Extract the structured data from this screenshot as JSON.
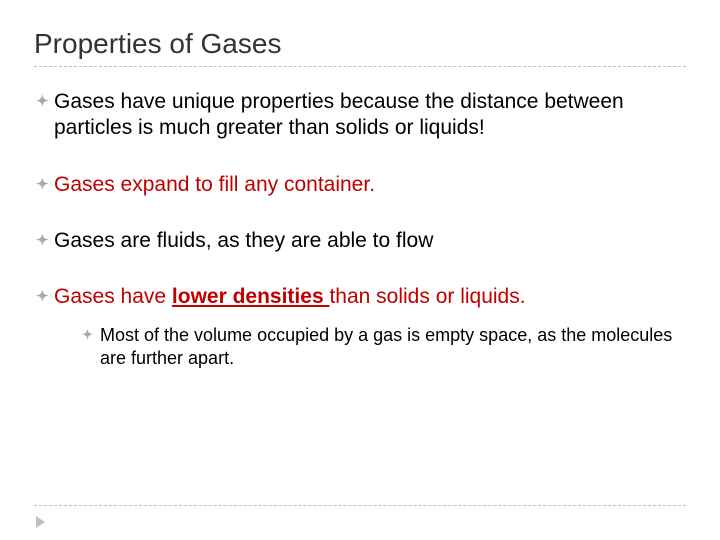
{
  "title": "Properties of Gases",
  "title_color": "#333333",
  "title_fontsize": 28,
  "body_fontsize": 21,
  "sub_fontsize": 18,
  "text_black": "#000000",
  "text_red": "#c00000",
  "marker_color": "#aaaaaa",
  "dash_color": "#bfbfbf",
  "background_color": "#ffffff",
  "bullets": [
    {
      "text": "Gases have unique properties because the distance between particles is much greater than solids or liquids!",
      "color": "black"
    },
    {
      "text": "Gases expand to fill any container.",
      "color": "red"
    },
    {
      "text": "Gases are fluids, as they are able to flow",
      "color": "black"
    },
    {
      "prefix": "Gases have ",
      "emph": "lower densities ",
      "suffix": "than solids or liquids.",
      "color": "red",
      "sub": [
        {
          "text": "Most of the volume occupied by a gas is empty space, as the molecules are further apart."
        }
      ]
    }
  ]
}
